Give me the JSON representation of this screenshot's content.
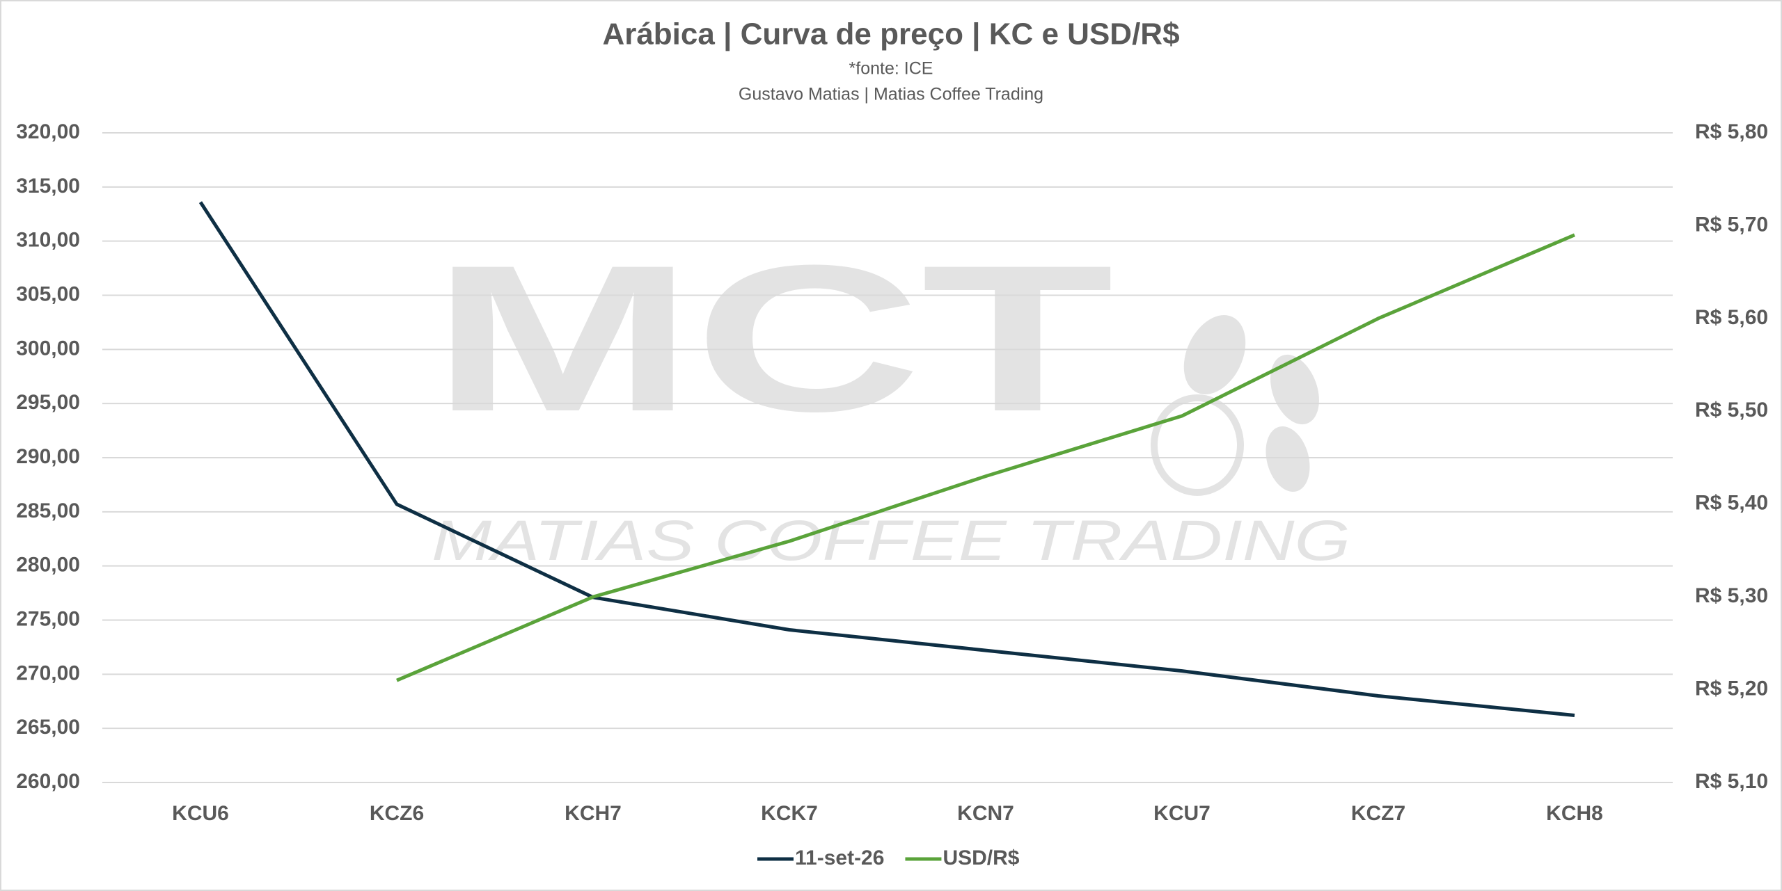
{
  "chart_data": {
    "type": "line",
    "title": "Arábica | Curva de preço | KC e USD/R$",
    "subtitle": [
      "*fonte: ICE",
      "Gustavo Matias | Matias Coffee Trading"
    ],
    "watermark": {
      "logo": "MCT",
      "text": "MATIAS COFFEE TRADING"
    },
    "categories": [
      "KCU6",
      "KCZ6",
      "KCH7",
      "KCK7",
      "KCN7",
      "KCU7",
      "KCZ7",
      "KCH8"
    ],
    "series": [
      {
        "name": "11-set-26",
        "color": "#0e2f44",
        "values": [
          313.6,
          285.7,
          277.1,
          274.1,
          272.2,
          270.3,
          268.0,
          266.2
        ]
      },
      {
        "name": "USD/R$",
        "color": "#5aa33a",
        "axis": "y2",
        "values": [
          null,
          5.21,
          5.3,
          5.36,
          5.43,
          5.495,
          5.6,
          5.69
        ]
      }
    ],
    "ylim": [
      260,
      320
    ],
    "yticks": [
      {
        "value": 260,
        "label": "260,00"
      },
      {
        "value": 265,
        "label": "265,00"
      },
      {
        "value": 270,
        "label": "270,00"
      },
      {
        "value": 275,
        "label": "275,00"
      },
      {
        "value": 280,
        "label": "280,00"
      },
      {
        "value": 285,
        "label": "285,00"
      },
      {
        "value": 290,
        "label": "290,00"
      },
      {
        "value": 295,
        "label": "295,00"
      },
      {
        "value": 300,
        "label": "300,00"
      },
      {
        "value": 305,
        "label": "305,00"
      },
      {
        "value": 310,
        "label": "310,00"
      },
      {
        "value": 315,
        "label": "315,00"
      },
      {
        "value": 320,
        "label": "320,00"
      }
    ],
    "y2lim": [
      5.1,
      5.8
    ],
    "y2ticks": [
      {
        "value": 5.1,
        "label": "R$ 5,10"
      },
      {
        "value": 5.2,
        "label": "R$ 5,20"
      },
      {
        "value": 5.3,
        "label": "R$ 5,30"
      },
      {
        "value": 5.4,
        "label": "R$ 5,40"
      },
      {
        "value": 5.5,
        "label": "R$ 5,50"
      },
      {
        "value": 5.6,
        "label": "R$ 5,60"
      },
      {
        "value": 5.7,
        "label": "R$ 5,70"
      },
      {
        "value": 5.8,
        "label": "R$ 5,80"
      }
    ],
    "grid": true
  }
}
